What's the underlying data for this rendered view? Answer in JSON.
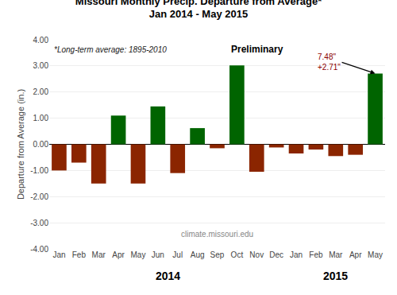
{
  "chart_data": {
    "type": "bar",
    "title": "Missouri Monthly Precip. Departure from Average*",
    "subtitle": "Jan 2014 - May 2015",
    "ylabel": "Departure from Average (in.)",
    "categories": [
      "Jan",
      "Feb",
      "Mar",
      "Apr",
      "May",
      "Jun",
      "Jul",
      "Aug",
      "Sep",
      "Oct",
      "Nov",
      "Dec",
      "Jan",
      "Feb",
      "Mar",
      "Apr",
      "May"
    ],
    "values": [
      -1.0,
      -0.7,
      -1.5,
      1.1,
      -1.5,
      1.45,
      -1.1,
      0.62,
      -0.15,
      3.02,
      -1.05,
      -0.12,
      -0.35,
      -0.2,
      -0.45,
      -0.4,
      2.71
    ],
    "colors": [
      "#8B2500",
      "#8B2500",
      "#8B2500",
      "#006400",
      "#8B2500",
      "#006400",
      "#8B2500",
      "#006400",
      "#8B2500",
      "#006400",
      "#8B2500",
      "#8B2500",
      "#8B2500",
      "#8B2500",
      "#8B2500",
      "#8B2500",
      "#006400"
    ],
    "ylim": [
      -4.0,
      4.0
    ],
    "yticks": [
      {
        "value": -4.0,
        "label": "-4.00"
      },
      {
        "value": -3.0,
        "label": "-3.00"
      },
      {
        "value": -2.0,
        "label": "-2.00"
      },
      {
        "value": -1.0,
        "label": "-1.00"
      },
      {
        "value": 0.0,
        "label": "0.00"
      },
      {
        "value": 1.0,
        "label": "1.00"
      },
      {
        "value": 2.0,
        "label": "2.00"
      },
      {
        "value": 3.0,
        "label": "3.00"
      },
      {
        "value": 4.0,
        "label": "4.00"
      }
    ],
    "grid": true,
    "annotations": [
      "*Long-term average: 1895-2010",
      "Preliminary",
      "climate.missouri.edu",
      "7.48\"",
      "+2.71\"",
      "2014",
      "2015"
    ]
  }
}
